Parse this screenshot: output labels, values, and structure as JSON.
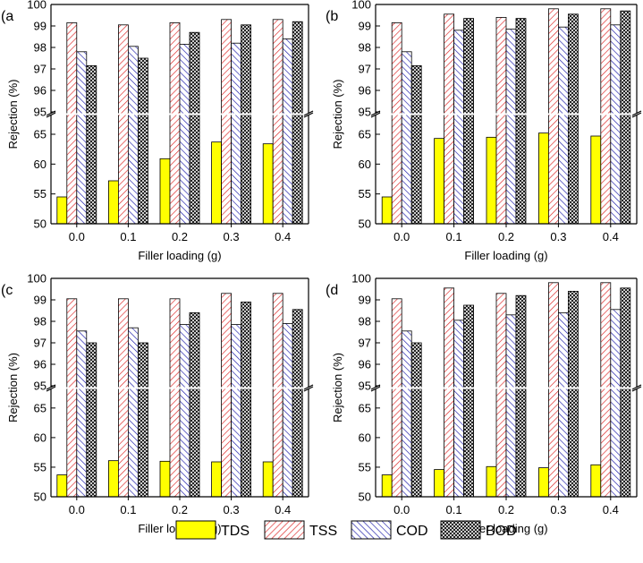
{
  "figure": {
    "legend": [
      {
        "key": "TDS",
        "label": "TDS",
        "pattern": "solid",
        "color": "#ffff00"
      },
      {
        "key": "TSS",
        "label": "TSS",
        "pattern": "hatch-right",
        "color": "#dd2222"
      },
      {
        "key": "COD",
        "label": "COD",
        "pattern": "hatch-left",
        "color": "#1a1aaa"
      },
      {
        "key": "BOD",
        "label": "BOD",
        "pattern": "crosshatch",
        "color": "#000000"
      }
    ],
    "colors": {
      "tds": "#ffff00",
      "tss": "#dd2222",
      "cod": "#1a1aaa",
      "bod": "#000000"
    }
  },
  "chart_data": [
    {
      "type": "bar",
      "panel": "(a",
      "panel_label": "(a",
      "title": "",
      "xlabel": "Filler loading (g)",
      "ylabel": "Rejection (%)",
      "categories": [
        "0.0",
        "0.1",
        "0.2",
        "0.3",
        "0.4"
      ],
      "ylim_lower": [
        50,
        68
      ],
      "ylim_upper": [
        95,
        100
      ],
      "yticks_lower": [
        "50",
        "55",
        "60",
        "65"
      ],
      "yticks_upper": [
        "95",
        "96",
        "97",
        "98",
        "99",
        "100"
      ],
      "series": [
        {
          "name": "TDS",
          "values": [
            54.5,
            57.2,
            60.9,
            63.7,
            63.4
          ]
        },
        {
          "name": "TSS",
          "values": [
            99.15,
            99.05,
            99.15,
            99.3,
            99.3
          ]
        },
        {
          "name": "COD",
          "values": [
            97.8,
            98.05,
            98.15,
            98.2,
            98.4
          ]
        },
        {
          "name": "BOD",
          "values": [
            97.15,
            97.5,
            98.7,
            99.05,
            99.2
          ]
        }
      ]
    },
    {
      "type": "bar",
      "panel": "(b",
      "panel_label": "(b",
      "title": "",
      "xlabel": "Filler loading (g)",
      "ylabel": "Rejection (%)",
      "categories": [
        "0.0",
        "0.1",
        "0.2",
        "0.3",
        "0.4"
      ],
      "ylim_lower": [
        50,
        68
      ],
      "ylim_upper": [
        95,
        100
      ],
      "yticks_lower": [
        "50",
        "55",
        "60",
        "65"
      ],
      "yticks_upper": [
        "95",
        "96",
        "97",
        "98",
        "99",
        "100"
      ],
      "series": [
        {
          "name": "TDS",
          "values": [
            54.5,
            64.3,
            64.5,
            65.2,
            64.7
          ]
        },
        {
          "name": "TSS",
          "values": [
            99.15,
            99.55,
            99.4,
            99.8,
            99.8
          ]
        },
        {
          "name": "COD",
          "values": [
            97.8,
            98.8,
            98.85,
            98.95,
            99.05
          ]
        },
        {
          "name": "BOD",
          "values": [
            97.15,
            99.35,
            99.35,
            99.55,
            99.7
          ]
        }
      ]
    },
    {
      "type": "bar",
      "panel": "(c",
      "panel_label": "(c",
      "title": "",
      "xlabel": "Filler loading (g)",
      "ylabel": "Rejection (%)",
      "categories": [
        "0.0",
        "0.1",
        "0.2",
        "0.3",
        "0.4"
      ],
      "ylim_lower": [
        50,
        68
      ],
      "ylim_upper": [
        95,
        100
      ],
      "yticks_lower": [
        "50",
        "55",
        "60",
        "65"
      ],
      "yticks_upper": [
        "95",
        "96",
        "97",
        "98",
        "99",
        "100"
      ],
      "series": [
        {
          "name": "TDS",
          "values": [
            53.7,
            56.1,
            56.0,
            55.9,
            55.9
          ]
        },
        {
          "name": "TSS",
          "values": [
            99.05,
            99.05,
            99.05,
            99.3,
            99.3
          ]
        },
        {
          "name": "COD",
          "values": [
            97.55,
            97.7,
            97.85,
            97.85,
            97.9
          ]
        },
        {
          "name": "BOD",
          "values": [
            97.0,
            97.0,
            98.4,
            98.9,
            98.55
          ]
        }
      ]
    },
    {
      "type": "bar",
      "panel": "(d",
      "panel_label": "(d",
      "title": "",
      "xlabel": "Filler loading (g)",
      "ylabel": "Rejection (%)",
      "categories": [
        "0.0",
        "0.1",
        "0.2",
        "0.3",
        "0.4"
      ],
      "ylim_lower": [
        50,
        68
      ],
      "ylim_upper": [
        95,
        100
      ],
      "yticks_lower": [
        "50",
        "55",
        "60",
        "65"
      ],
      "yticks_upper": [
        "95",
        "96",
        "97",
        "98",
        "99",
        "100"
      ],
      "series": [
        {
          "name": "TDS",
          "values": [
            53.7,
            54.6,
            55.1,
            54.9,
            55.4
          ]
        },
        {
          "name": "TSS",
          "values": [
            99.05,
            99.55,
            99.3,
            99.8,
            99.8
          ]
        },
        {
          "name": "COD",
          "values": [
            97.55,
            98.05,
            98.3,
            98.4,
            98.55
          ]
        },
        {
          "name": "BOD",
          "values": [
            97.0,
            98.75,
            99.2,
            99.4,
            99.55
          ]
        }
      ]
    }
  ]
}
